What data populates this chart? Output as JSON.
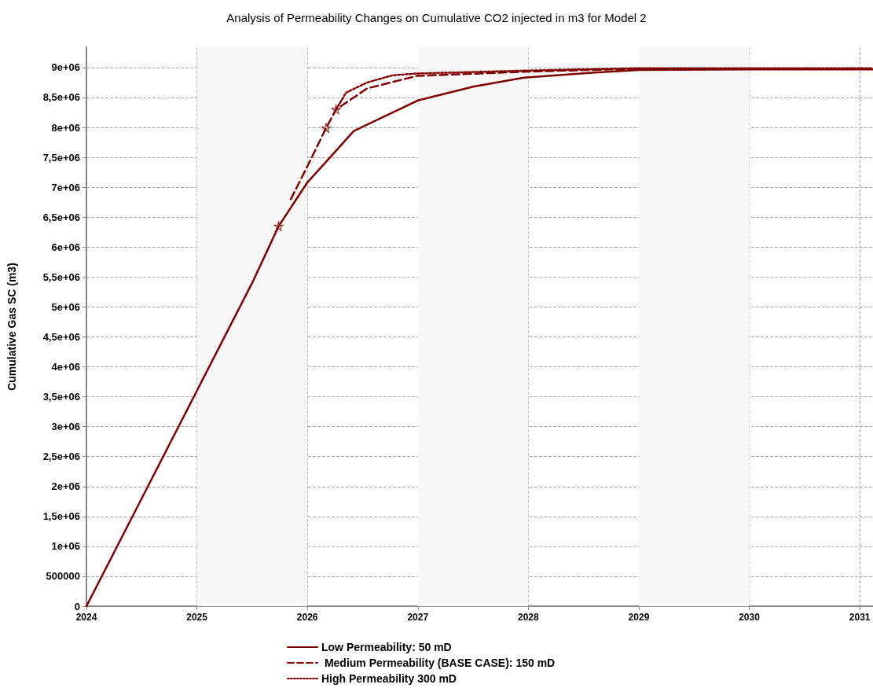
{
  "chart_data": {
    "type": "line",
    "title": "Analysis of Permeability Changes on Cumulative CO2 injected in m3 for Model 2",
    "ylabel": "Cumulative Gas SC (m3)",
    "xlim": [
      2024,
      2031.12
    ],
    "xticks": [
      2024,
      2025,
      2026,
      2027,
      2028,
      2029,
      2030,
      2031
    ],
    "ylim": [
      0,
      9340000
    ],
    "yticks": [
      0,
      500000,
      {
        "value": 1000000,
        "label": "1e+06"
      },
      {
        "value": 1500000,
        "label": "1,5e+06"
      },
      {
        "value": 2000000,
        "label": "2e+06"
      },
      {
        "value": 2500000,
        "label": "2,5e+06"
      },
      {
        "value": 3000000,
        "label": "3e+06"
      },
      {
        "value": 3500000,
        "label": "3,5e+06"
      },
      {
        "value": 4000000,
        "label": "4e+06"
      },
      {
        "value": 4500000,
        "label": "4,5e+06"
      },
      {
        "value": 5000000,
        "label": "5e+06"
      },
      {
        "value": 5500000,
        "label": "5,5e+06"
      },
      {
        "value": 6000000,
        "label": "6e+06"
      },
      {
        "value": 6500000,
        "label": "6,5e+06"
      },
      {
        "value": 7000000,
        "label": "7e+06"
      },
      {
        "value": 7500000,
        "label": "7,5e+06"
      },
      {
        "value": 8000000,
        "label": "8e+06"
      },
      {
        "value": 8500000,
        "label": "8,5e+06"
      },
      {
        "value": 9000000,
        "label": "9e+06"
      }
    ],
    "grid": true,
    "legend": "bottom",
    "marker": "none",
    "bands": [
      {
        "axis": "x",
        "from": 2025,
        "to": 2026,
        "color": "#f7f7f7"
      },
      {
        "axis": "x",
        "from": 2027,
        "to": 2028,
        "color": "#f7f7f7"
      },
      {
        "axis": "x",
        "from": 2029,
        "to": 2030,
        "color": "#f7f7f7"
      }
    ],
    "series": [
      {
        "name": "Low Permeability: 50 mD",
        "color": "#800000",
        "line_style": "solid",
        "x": [
          2024,
          2024.5,
          2025,
          2025.5,
          2025.74,
          2026,
          2026.42,
          2027,
          2027.5,
          2027.96,
          2028.55,
          2029,
          2030,
          2031.12
        ],
        "values": [
          0,
          1800000,
          3600000,
          5400000,
          6350000,
          7080000,
          7940000,
          8450000,
          8680000,
          8830000,
          8910000,
          8960000,
          8970000,
          8970000
        ]
      },
      {
        "name": " Medium Permeability (BASE CASE): 150 mD",
        "color": "#800000",
        "line_style": "dashed",
        "x": [
          2025.85,
          2026,
          2026.17,
          2026.26,
          2026.54,
          2026.99,
          2027.96,
          2029,
          2031.12
        ],
        "values": [
          6800000,
          7350000,
          7990000,
          8300000,
          8650000,
          8860000,
          8930000,
          8980000,
          8980000
        ]
      },
      {
        "name": "High Permeability 300 mD",
        "color": "#800000",
        "line_style": "dotted",
        "x": [
          2026.26,
          2026.35,
          2026.54,
          2026.77,
          2026.99,
          2028,
          2029,
          2031.12
        ],
        "values": [
          8300000,
          8580000,
          8750000,
          8870000,
          8900000,
          8950000,
          8990000,
          8990000
        ]
      },
      {
        "type": "scatter",
        "marker": "star",
        "color": "#800000",
        "x": [
          2025.74,
          2026.17,
          2026.26
        ],
        "values": [
          6350000,
          7990000,
          8300000
        ]
      }
    ]
  }
}
